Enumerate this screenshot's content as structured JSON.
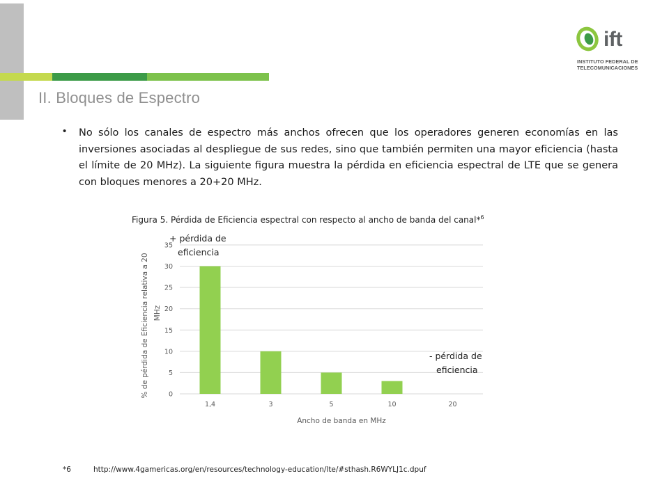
{
  "header": {
    "section_title": "II. Bloques de Espectro",
    "logo": {
      "word": "ift",
      "line1": "INSTITUTO FEDERAL DE",
      "line2": "TELECOMUNICACIONES",
      "colors": {
        "green": "#8cc63f",
        "dark_green": "#3c9b48",
        "gray": "#5f6264"
      }
    }
  },
  "body": {
    "bullet": "No sólo los canales de espectro más anchos ofrecen que los operadores generen economías en las inversiones asociadas al despliegue de sus redes, sino que también permiten una mayor eficiencia (hasta el límite de 20 MHz). La siguiente figura muestra la pérdida en eficiencia espectral de LTE que se genera con bloques menores a 20+20 MHz."
  },
  "figure": {
    "caption": "Figura 5. Pérdida de Eficiencia espectral con respecto al ancho de banda del canal*",
    "caption_sup": "6"
  },
  "chart_data": {
    "type": "bar",
    "categories": [
      "1,4",
      "3",
      "5",
      "10",
      "20"
    ],
    "values": [
      30,
      10,
      5,
      3,
      0
    ],
    "title": "",
    "xlabel": "Ancho de banda en MHz",
    "ylabel_line1": "% de pérdida de Eficiencia relativa a 20",
    "ylabel_line2": "MHz",
    "ylim": [
      0,
      35
    ],
    "yticks": [
      "0",
      "5",
      "10",
      "15",
      "20",
      "25",
      "30",
      "35"
    ],
    "grid": true,
    "bar_color": "#92d050",
    "annotations": {
      "top_line1": "+ pérdida de",
      "top_line2": "eficiencia",
      "bottom_line1": "- pérdida de",
      "bottom_line2": "eficiencia"
    }
  },
  "footnote": {
    "mark": "*6",
    "url": "http://www.4gamericas.org/en/resources/technology-education/lte/#sthash.R6WYLJ1c.dpuf"
  }
}
